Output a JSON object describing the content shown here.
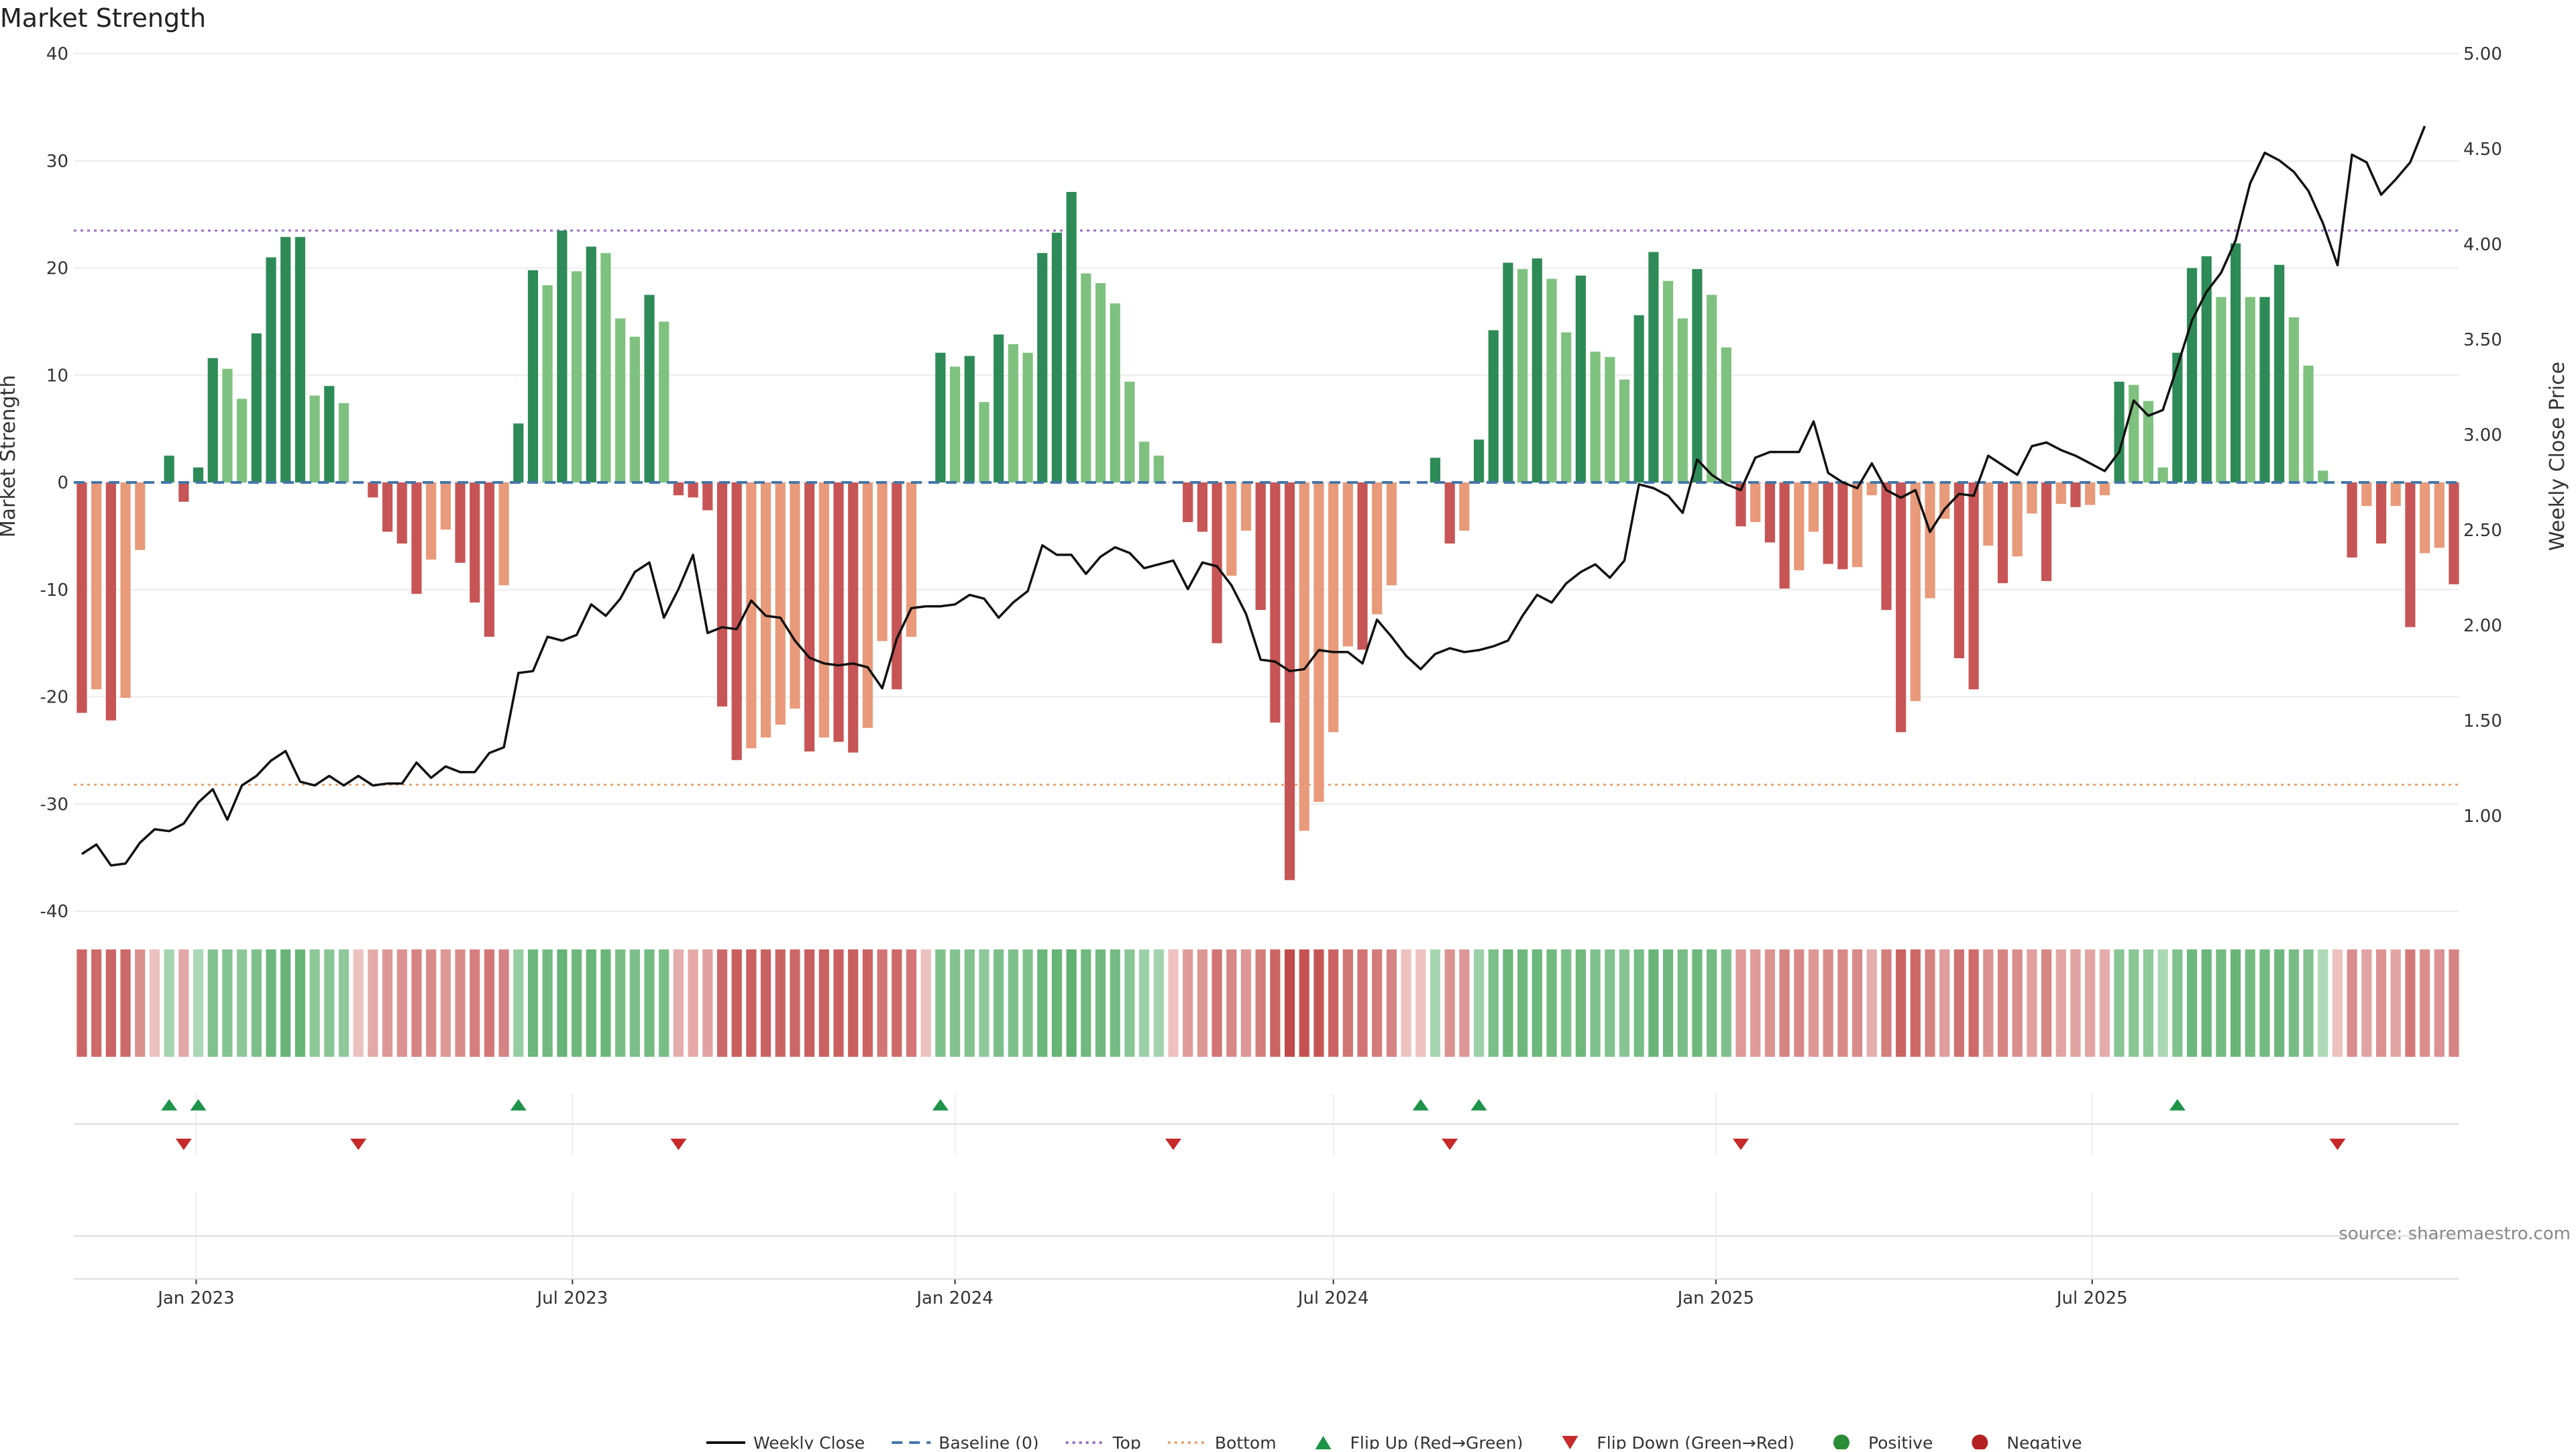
{
  "chart_data": {
    "type": "bar",
    "title": "Market Strength",
    "ylabel": "Market Strength",
    "y2label": "Weekly Close Price",
    "source": "source: sharemaestro.com",
    "ylim": [
      -40,
      40
    ],
    "y2lim": [
      0.5,
      5.0
    ],
    "yticks": [
      40,
      30,
      20,
      10,
      0,
      -10,
      -20,
      -30,
      -40
    ],
    "y2ticks": [
      "5.00",
      "4.50",
      "4.00",
      "3.50",
      "3.00",
      "2.50",
      "2.00",
      "1.50",
      "1.00"
    ],
    "y2tick_values": [
      5.0,
      4.5,
      4.0,
      3.5,
      3.0,
      2.5,
      2.0,
      1.5,
      1.0
    ],
    "start_date": "2022-11-07",
    "x_tick_labels": [
      {
        "label": "Jan 2023",
        "date": "2023-01-01"
      },
      {
        "label": "Jul 2023",
        "date": "2023-07-01"
      },
      {
        "label": "Jan 2024",
        "date": "2024-01-01"
      },
      {
        "label": "Jul 2024",
        "date": "2024-07-01"
      },
      {
        "label": "Jan 2025",
        "date": "2025-01-01"
      },
      {
        "label": "Jul 2025",
        "date": "2025-07-01"
      }
    ],
    "top_threshold": 23.5,
    "bottom_threshold": -28.2,
    "baseline": 0,
    "strength": [
      -21.5,
      -19.3,
      -22.2,
      -20.1,
      -6.3,
      0,
      2.5,
      -1.8,
      1.4,
      11.6,
      10.6,
      7.8,
      13.9,
      21,
      22.9,
      22.9,
      8.1,
      9,
      7.4,
      0,
      -1.4,
      -4.6,
      -5.7,
      -10.4,
      -7.2,
      -4.4,
      -7.5,
      -11.2,
      -14.4,
      -9.6,
      5.5,
      19.8,
      18.4,
      23.5,
      19.7,
      22,
      21.4,
      15.3,
      13.6,
      17.5,
      15,
      -1.2,
      -1.4,
      -2.6,
      -20.9,
      -25.9,
      -24.8,
      -23.8,
      -22.6,
      -21.1,
      -25.1,
      -23.8,
      -24.2,
      -25.2,
      -22.9,
      -14.8,
      -19.3,
      -14.4,
      0,
      12.1,
      10.8,
      11.8,
      7.5,
      13.8,
      12.9,
      12.1,
      21.4,
      23.3,
      27.1,
      19.5,
      18.6,
      16.7,
      9.4,
      3.8,
      2.5,
      0,
      -3.7,
      -4.6,
      -15,
      -8.7,
      -4.5,
      -11.9,
      -22.4,
      -37.1,
      -32.5,
      -29.8,
      -23.3,
      -15.3,
      -15.6,
      -12.3,
      -9.6,
      0,
      0,
      2.3,
      -5.7,
      -4.5,
      4,
      14.2,
      20.5,
      19.9,
      20.9,
      19,
      14,
      19.3,
      12.2,
      11.7,
      9.6,
      15.6,
      21.5,
      18.8,
      15.3,
      19.9,
      17.5,
      12.6,
      -4.1,
      -3.7,
      -5.6,
      -9.9,
      -8.2,
      -4.6,
      -7.6,
      -8.1,
      -7.9,
      -1.2,
      -11.9,
      -23.3,
      -20.4,
      -10.8,
      -3.4,
      -16.4,
      -19.3,
      -5.9,
      -9.4,
      -6.9,
      -2.9,
      -9.2,
      -2,
      -2.3,
      -2.1,
      -1.2,
      9.4,
      9.1,
      7.6,
      1.4,
      12.1,
      20,
      21.1,
      17.3,
      22.3,
      17.3,
      17.3,
      20.3,
      15.4,
      10.9,
      1.1,
      0,
      -7,
      -2.2,
      -5.7,
      -2.2,
      -13.5,
      -6.6,
      -6.1,
      -9.5
    ],
    "price": [
      0.8,
      0.85,
      0.74,
      0.75,
      0.86,
      0.93,
      0.92,
      0.96,
      1.07,
      1.14,
      0.98,
      1.16,
      1.21,
      1.29,
      1.34,
      1.18,
      1.16,
      1.21,
      1.16,
      1.21,
      1.16,
      1.17,
      1.17,
      1.28,
      1.2,
      1.26,
      1.23,
      1.23,
      1.33,
      1.36,
      1.75,
      1.76,
      1.94,
      1.92,
      1.95,
      2.11,
      2.05,
      2.14,
      2.28,
      2.33,
      2.04,
      2.19,
      2.37,
      1.96,
      1.99,
      1.98,
      2.13,
      2.05,
      2.04,
      1.92,
      1.83,
      1.8,
      1.79,
      1.8,
      1.78,
      1.67,
      1.93,
      2.09,
      2.1,
      2.1,
      2.11,
      2.16,
      2.14,
      2.04,
      2.12,
      2.18,
      2.42,
      2.37,
      2.37,
      2.27,
      2.36,
      2.41,
      2.38,
      2.3,
      2.32,
      2.34,
      2.19,
      2.33,
      2.31,
      2.21,
      2.06,
      1.82,
      1.81,
      1.76,
      1.77,
      1.87,
      1.86,
      1.86,
      1.8,
      2.03,
      1.94,
      1.84,
      1.77,
      1.85,
      1.88,
      1.86,
      1.87,
      1.89,
      1.92,
      2.05,
      2.16,
      2.12,
      2.22,
      2.28,
      2.32,
      2.25,
      2.34,
      2.74,
      2.72,
      2.68,
      2.59,
      2.87,
      2.79,
      2.74,
      2.71,
      2.88,
      2.91,
      2.91,
      2.91,
      3.07,
      2.8,
      2.75,
      2.72,
      2.85,
      2.71,
      2.67,
      2.71,
      2.49,
      2.61,
      2.69,
      2.68,
      2.89,
      2.84,
      2.79,
      2.94,
      2.96,
      2.92,
      2.89,
      2.85,
      2.81,
      2.91,
      3.18,
      3.1,
      3.13,
      3.36,
      3.6,
      3.75,
      3.85,
      4.02,
      4.32,
      4.48,
      4.44,
      4.38,
      4.28,
      4.11,
      3.89,
      4.47,
      4.43,
      4.26,
      4.34,
      4.43,
      4.62
    ],
    "flip_up_indices": [
      6,
      8,
      30,
      59,
      92,
      96,
      144
    ],
    "flip_down_indices": [
      7,
      19,
      41,
      75,
      94,
      114,
      155
    ],
    "legend": [
      {
        "label": "Weekly Close",
        "symbol": "line",
        "color": "#111111"
      },
      {
        "label": "Baseline (0)",
        "symbol": "dash",
        "color": "#4477aa"
      },
      {
        "label": "Top",
        "symbol": "dot",
        "color": "#9a6fc7"
      },
      {
        "label": "Bottom",
        "symbol": "dot",
        "color": "#e8a671"
      },
      {
        "label": "Flip Up (Red→Green)",
        "symbol": "tri-up",
        "color": "#1e9448"
      },
      {
        "label": "Flip Down (Green→Red)",
        "symbol": "tri-down",
        "color": "#c62a2a"
      },
      {
        "label": "Positive",
        "symbol": "circle",
        "color": "#2a8c34"
      },
      {
        "label": "Negative",
        "symbol": "circle",
        "color": "#b22222"
      }
    ],
    "colors": {
      "pos_dark": "#2e8b57",
      "pos_light": "#7fc17f",
      "neg_dark": "#c75555",
      "neg_light": "#e89a7a",
      "price_line": "#111111",
      "baseline": "#4477aa",
      "top": "#9a6fc7",
      "bottom": "#e8a671",
      "flip_up": "#1e9448",
      "flip_down": "#c62a2a"
    }
  }
}
